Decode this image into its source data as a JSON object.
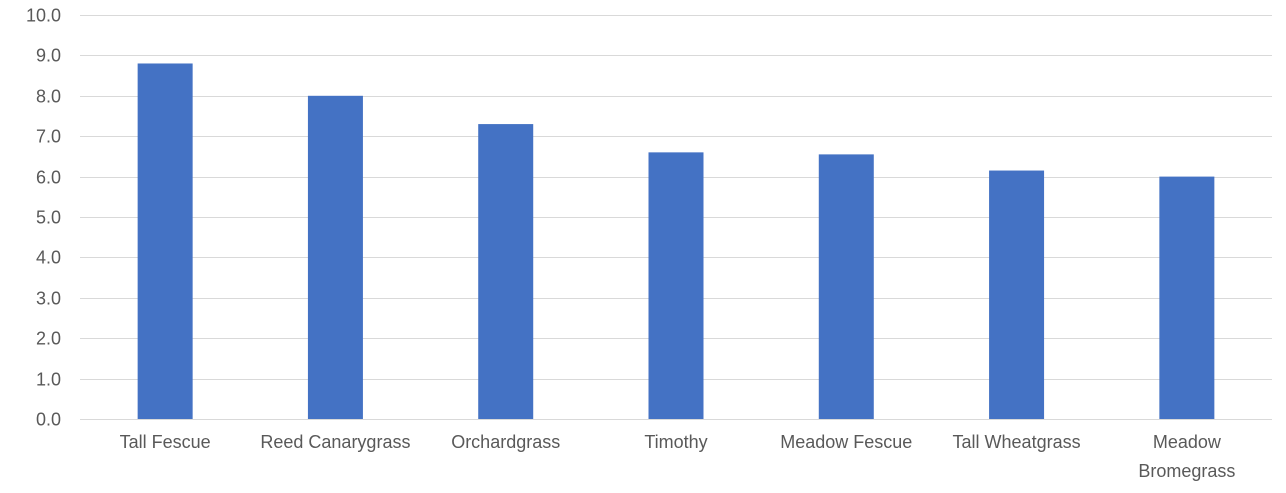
{
  "chart_data": {
    "type": "bar",
    "categories": [
      [
        "Tall Fescue"
      ],
      [
        "Reed Canarygrass"
      ],
      [
        "Orchardgrass"
      ],
      [
        "Timothy"
      ],
      [
        "Meadow Fescue"
      ],
      [
        "Tall Wheatgrass"
      ],
      [
        "Meadow",
        "Bromegrass"
      ]
    ],
    "values": [
      8.8,
      8.0,
      7.3,
      6.6,
      6.55,
      6.15,
      6.0
    ],
    "ylim": [
      0,
      10
    ],
    "ytick_step": 1,
    "ytick_decimals": 1,
    "grid": true,
    "legend": "none",
    "bar_color": "#4472C4",
    "grid_color": "#d9d9d9",
    "label_color": "#595959"
  }
}
